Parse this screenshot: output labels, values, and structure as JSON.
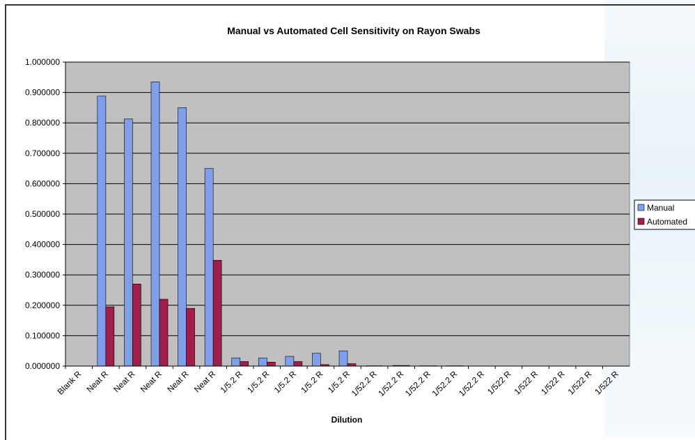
{
  "chart_data": {
    "type": "bar",
    "title": "Manual vs Automated Cell Sensitivity on Rayon Swabs",
    "xlabel": "Dilution",
    "ylabel": "",
    "ylim": [
      0,
      1
    ],
    "y_ticks": [
      "0.000000",
      "0.100000",
      "0.200000",
      "0.300000",
      "0.400000",
      "0.500000",
      "0.600000",
      "0.700000",
      "0.800000",
      "0.900000",
      "1.000000"
    ],
    "grid": true,
    "legend_position": "right",
    "categories": [
      "Blank R",
      "Neat R",
      "Neat R",
      "Neat R",
      "Neat R",
      "Neat R",
      "1/5.2 R",
      "1/5.2 R",
      "1/5.2 R",
      "1/5.2 R",
      "1/5.2 R",
      "1/52.2 R",
      "1/52.2 R",
      "1/52.2 R",
      "1/52.2 R",
      "1/52.2 R",
      "1/522 R",
      "1/522 R",
      "1/522 R",
      "1/522 R",
      "1/522 R"
    ],
    "series": [
      {
        "name": "Manual",
        "color": "#7f9fe8",
        "values": [
          0,
          0.888,
          0.813,
          0.935,
          0.85,
          0.65,
          0.027,
          0.027,
          0.032,
          0.042,
          0.05,
          0.001,
          0.002,
          0.001,
          0.001,
          0,
          0,
          0,
          0,
          0,
          0
        ]
      },
      {
        "name": "Automated",
        "color": "#9e1f4a",
        "values": [
          0,
          0.195,
          0.27,
          0.22,
          0.19,
          0.348,
          0.015,
          0.013,
          0.015,
          0.005,
          0.008,
          0.001,
          0.002,
          0.001,
          0.001,
          0,
          0,
          0,
          0,
          0,
          0
        ]
      }
    ],
    "colors": {
      "plot_background": "#c0c0c0",
      "gridline": "#000000"
    }
  }
}
